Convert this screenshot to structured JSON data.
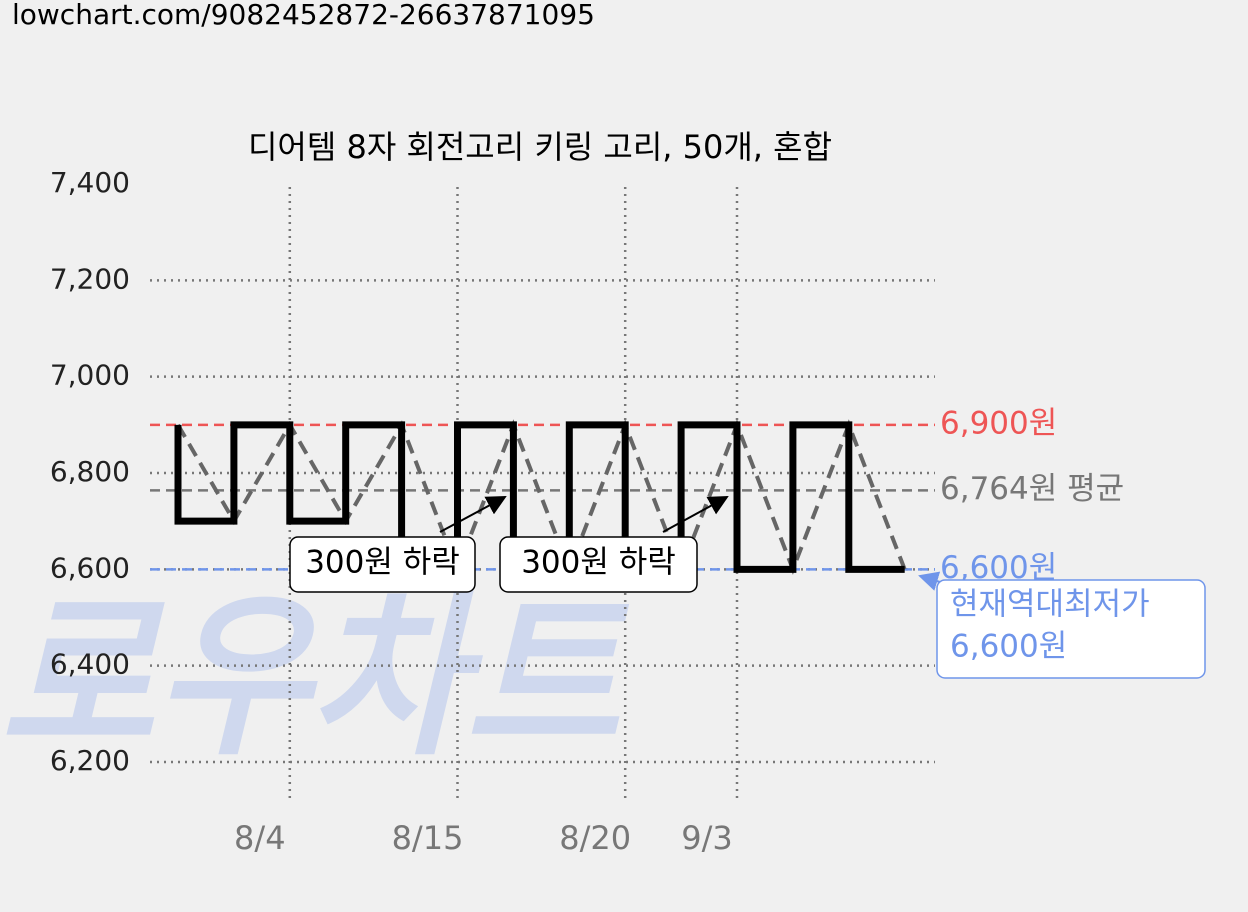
{
  "url": "lowchart.com/9082452872-26637871095",
  "chart_data": {
    "type": "step",
    "title": "디어템 8자 회전고리 키링 고리, 50개, 혼합",
    "categories": [
      null,
      null,
      "8/4",
      null,
      null,
      "8/15",
      null,
      null,
      "8/20",
      null,
      "9/3",
      null,
      null,
      null
    ],
    "values": [
      6900,
      6700,
      6900,
      6700,
      6900,
      6600,
      6900,
      6600,
      6900,
      6600,
      6900,
      6600,
      6900,
      6600
    ],
    "color": "#000000",
    "trend_color": "#666666",
    "ylim": [
      6200,
      7400
    ],
    "yticks": [
      {
        "value": 6200,
        "label": "6,200"
      },
      {
        "value": 6400,
        "label": "6,400"
      },
      {
        "value": 6600,
        "label": "6,600"
      },
      {
        "value": 6800,
        "label": "6,800"
      },
      {
        "value": 7000,
        "label": "7,000"
      },
      {
        "value": 7200,
        "label": "7,200"
      },
      {
        "value": 7400,
        "label": "7,400"
      }
    ],
    "grid": true,
    "reference_lines": [
      {
        "value": 6900,
        "label": "6,900원",
        "color": "#ee5555"
      },
      {
        "value": 6764,
        "label": "6,764원 평균",
        "color": "#777777"
      },
      {
        "value": 6600,
        "label": "6,600원",
        "color": "#6f95ea"
      }
    ],
    "annotations": [
      "300원 하락",
      "300원 하락"
    ],
    "min_note": [
      "현재역대최저가",
      "6,600원"
    ],
    "watermark": "로우차트"
  }
}
